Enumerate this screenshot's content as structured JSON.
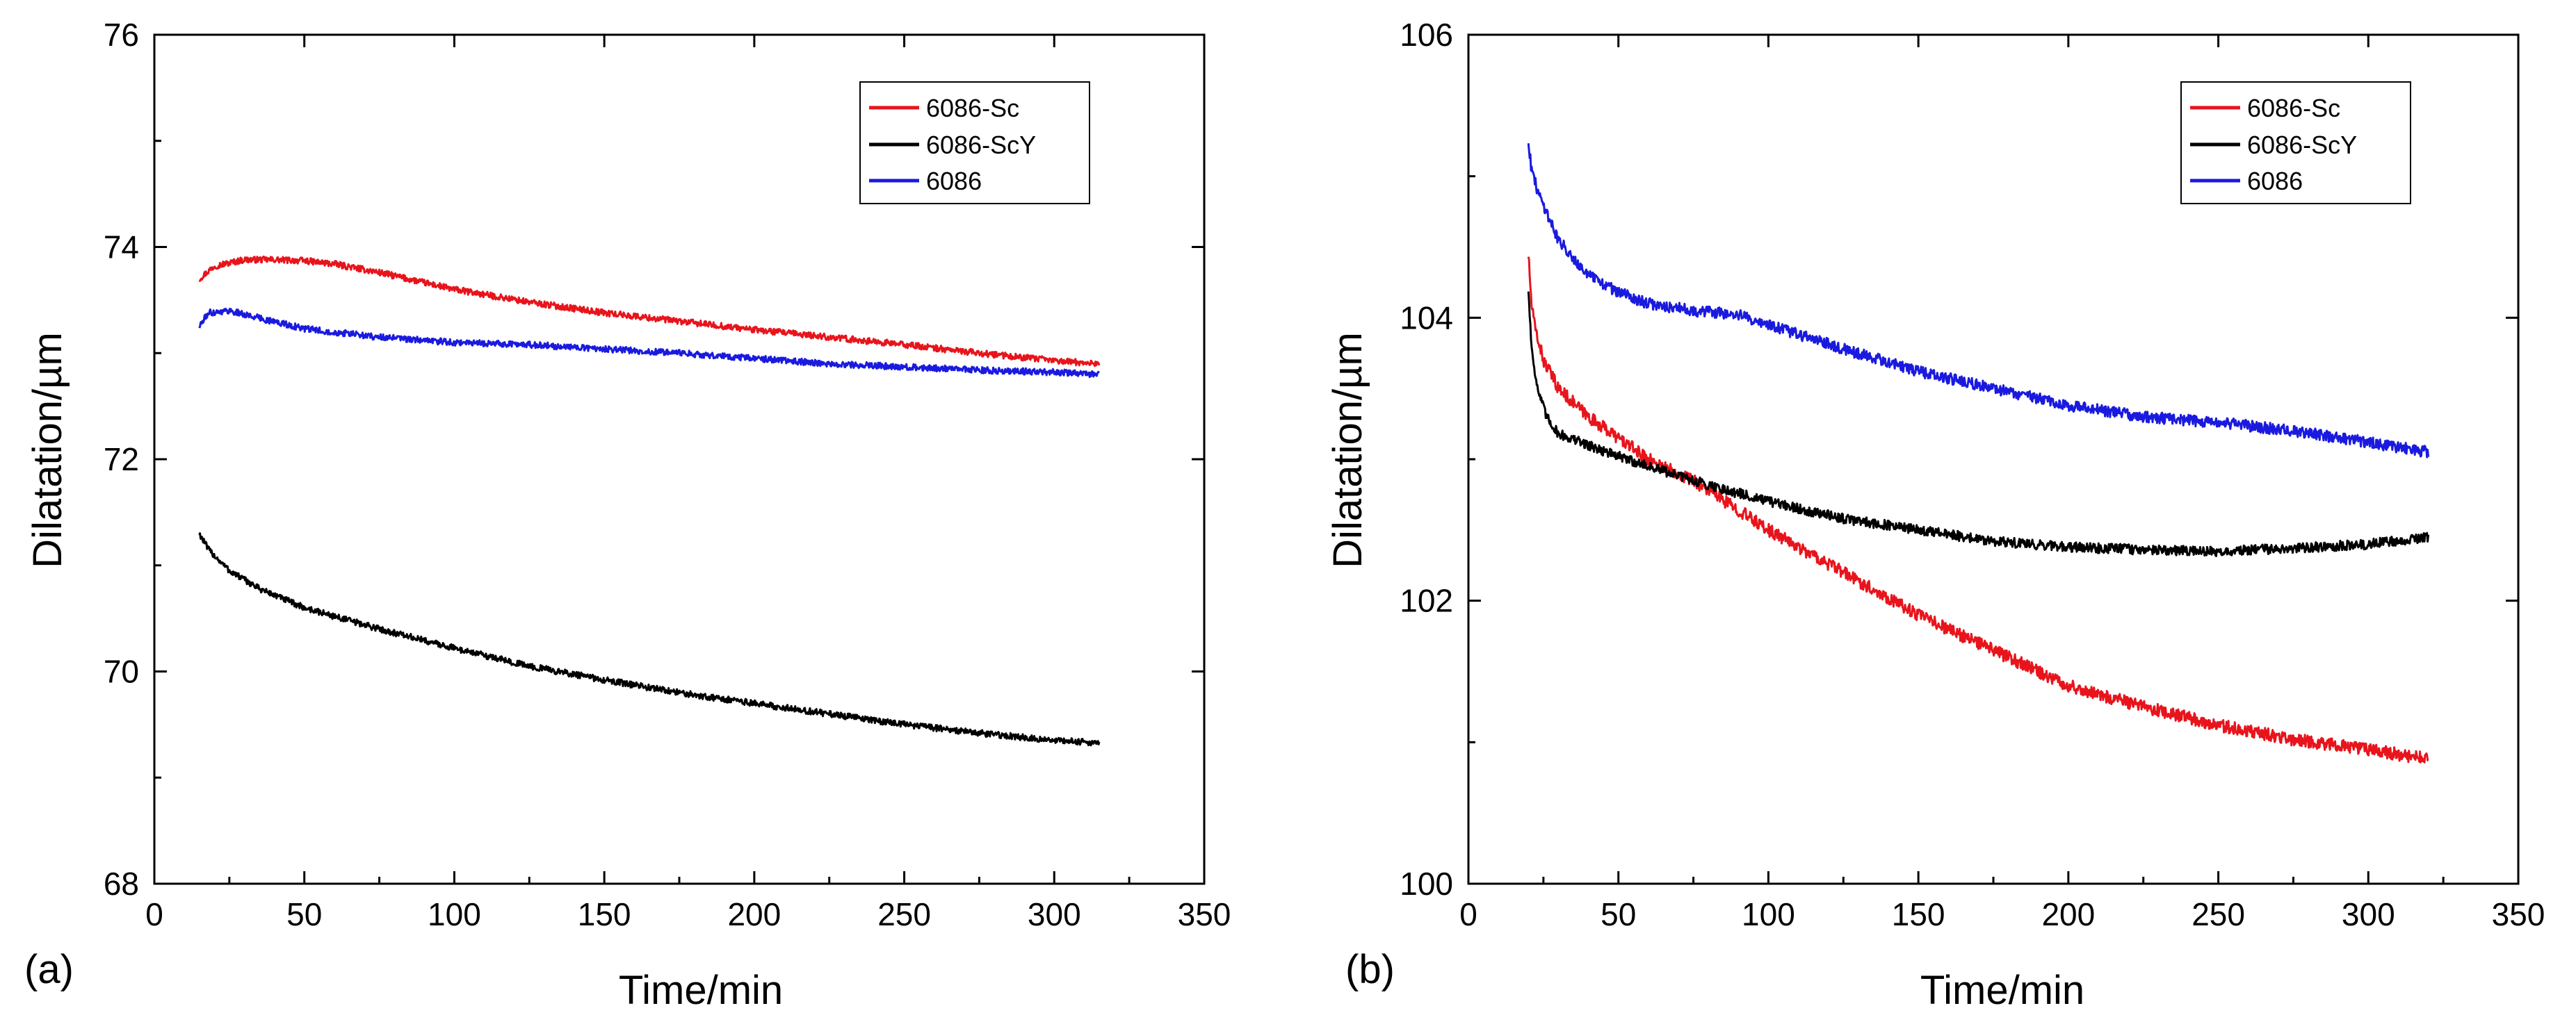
{
  "chart_data": [
    {
      "type": "line",
      "panel_label": "(a)",
      "xlabel": "Time/min",
      "ylabel": "Dilatation/µm",
      "xlim": [
        0,
        350
      ],
      "ylim": [
        68,
        76
      ],
      "xticks": [
        0,
        50,
        100,
        150,
        200,
        250,
        300,
        350
      ],
      "yticks": [
        68,
        70,
        72,
        74,
        76
      ],
      "xtick_labels": [
        "0",
        "50",
        "100",
        "150",
        "200",
        "250",
        "300",
        "350"
      ],
      "ytick_labels": [
        "68",
        "70",
        "72",
        "74",
        "76"
      ],
      "grid": false,
      "legend_position": "top-right",
      "series": [
        {
          "name": "6086-Sc",
          "color": "#e8141c",
          "noise": 0.03,
          "x": [
            15,
            20,
            30,
            40,
            50,
            60,
            75,
            100,
            125,
            150,
            175,
            200,
            225,
            250,
            275,
            300,
            315
          ],
          "y": [
            73.7,
            73.82,
            73.88,
            73.88,
            73.87,
            73.84,
            73.76,
            73.6,
            73.48,
            73.38,
            73.3,
            73.22,
            73.15,
            73.08,
            73.0,
            72.93,
            72.9
          ]
        },
        {
          "name": "6086-ScY",
          "color": "#000000",
          "noise": 0.03,
          "x": [
            15,
            18,
            25,
            35,
            50,
            75,
            100,
            125,
            150,
            175,
            200,
            225,
            250,
            275,
            300,
            315
          ],
          "y": [
            71.3,
            71.15,
            70.95,
            70.78,
            70.6,
            70.4,
            70.22,
            70.05,
            69.92,
            69.8,
            69.7,
            69.6,
            69.5,
            69.42,
            69.35,
            69.33
          ]
        },
        {
          "name": "6086",
          "color": "#1a1adf",
          "noise": 0.03,
          "x": [
            15,
            18,
            25,
            35,
            50,
            75,
            100,
            125,
            150,
            175,
            200,
            225,
            250,
            275,
            300,
            315
          ],
          "y": [
            73.25,
            73.38,
            73.4,
            73.33,
            73.23,
            73.15,
            73.1,
            73.08,
            73.04,
            73.0,
            72.95,
            72.9,
            72.87,
            72.84,
            72.82,
            72.8
          ]
        }
      ]
    },
    {
      "type": "line",
      "panel_label": "(b)",
      "xlabel": "Time/min",
      "ylabel": "Dilatation/µm",
      "xlim": [
        0,
        350
      ],
      "ylim": [
        100,
        106
      ],
      "xticks": [
        0,
        50,
        100,
        150,
        200,
        250,
        300,
        350
      ],
      "yticks": [
        100,
        102,
        104,
        106
      ],
      "xtick_labels": [
        "0",
        "50",
        "100",
        "150",
        "200",
        "250",
        "300",
        "350"
      ],
      "ytick_labels": [
        "100",
        "102",
        "104",
        "106"
      ],
      "grid": false,
      "legend_position": "top-right",
      "series": [
        {
          "name": "6086-Sc",
          "color": "#e8141c",
          "noise": 0.045,
          "x": [
            20,
            21,
            22,
            25,
            30,
            40,
            50,
            60,
            75,
            100,
            125,
            150,
            175,
            200,
            225,
            250,
            275,
            300,
            320
          ],
          "y": [
            104.45,
            104.1,
            103.95,
            103.7,
            103.5,
            103.3,
            103.15,
            103.0,
            102.85,
            102.5,
            102.2,
            101.9,
            101.65,
            101.4,
            101.25,
            101.12,
            101.02,
            100.95,
            100.88
          ]
        },
        {
          "name": "6086-ScY",
          "color": "#000000",
          "noise": 0.035,
          "x": [
            20,
            21,
            23,
            26,
            30,
            40,
            50,
            60,
            75,
            100,
            125,
            150,
            175,
            200,
            225,
            250,
            275,
            300,
            320
          ],
          "y": [
            104.2,
            103.8,
            103.5,
            103.3,
            103.18,
            103.1,
            103.02,
            102.95,
            102.85,
            102.7,
            102.58,
            102.5,
            102.42,
            102.38,
            102.36,
            102.35,
            102.37,
            102.4,
            102.45
          ]
        },
        {
          "name": "6086",
          "color": "#1a1adf",
          "noise": 0.04,
          "x": [
            20,
            21,
            23,
            26,
            30,
            40,
            50,
            60,
            75,
            90,
            100,
            125,
            150,
            175,
            200,
            225,
            250,
            275,
            300,
            320
          ],
          "y": [
            105.25,
            105.05,
            104.9,
            104.75,
            104.55,
            104.3,
            104.18,
            104.1,
            104.05,
            104.02,
            103.95,
            103.78,
            103.62,
            103.5,
            103.38,
            103.3,
            103.26,
            103.2,
            103.12,
            103.05
          ]
        }
      ]
    }
  ]
}
